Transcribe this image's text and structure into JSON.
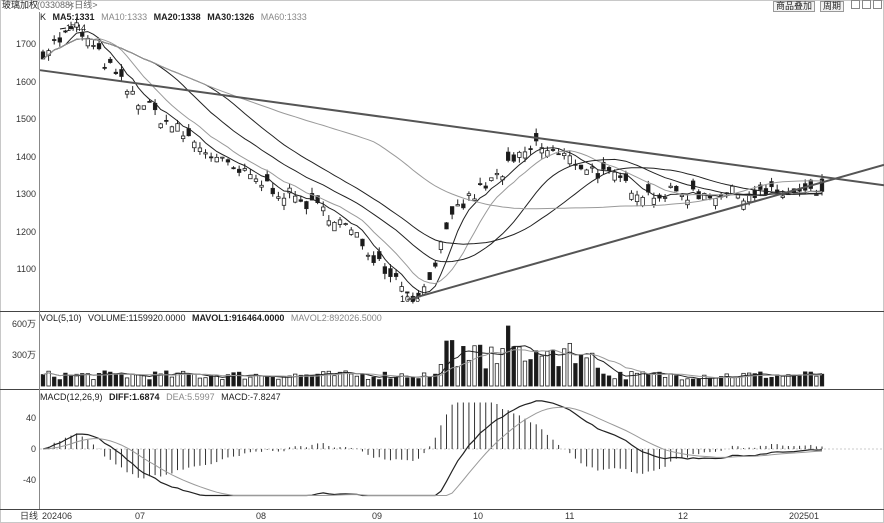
{
  "header": {
    "instrument": "玻璃加权",
    "code": "(033088)",
    "period": "<日线>",
    "overlay_label": "商品叠加",
    "cycle_label": "周期"
  },
  "price_panel": {
    "label": "K",
    "legend": [
      {
        "text": "MA5:1331",
        "style": "bold"
      },
      {
        "text": "MA10:1333",
        "style": "light"
      },
      {
        "text": "MA20:1338",
        "style": "bold"
      },
      {
        "text": "MA30:1326",
        "style": "bold"
      },
      {
        "text": "MA60:1333",
        "style": "light"
      }
    ],
    "yticks": [
      "1700",
      "1600",
      "1500",
      "1400",
      "1300",
      "1200",
      "1100"
    ],
    "high_annotation": "1744",
    "low_annotation": "1016"
  },
  "volume_panel": {
    "legend": [
      {
        "text": "VOL(5,10)",
        "style": "normal"
      },
      {
        "text": "VOLUME:1159920.0000",
        "style": "normal"
      },
      {
        "text": "MAVOL1:916464.0000",
        "style": "bold"
      },
      {
        "text": "MAVOL2:892026.5000",
        "style": "light"
      }
    ],
    "yticks": [
      "600万",
      "300万"
    ]
  },
  "macd_panel": {
    "legend": [
      {
        "text": "MACD(12,26,9)",
        "style": "normal"
      },
      {
        "text": "DIFF:1.6874",
        "style": "bold"
      },
      {
        "text": "DEA:5.5997",
        "style": "light"
      },
      {
        "text": "MACD:-7.8247",
        "style": "normal"
      }
    ],
    "yticks": [
      "40",
      "0",
      "-40"
    ]
  },
  "xaxis": {
    "label": "日线",
    "ticks": [
      "202406",
      "07",
      "08",
      "09",
      "10",
      "11",
      "12",
      "202501"
    ]
  },
  "colors": {
    "up": "#ffffff",
    "down": "#1a1a1a",
    "line": "#222222",
    "light": "#9a9a9a",
    "trend": "#555555"
  },
  "chart_data": {
    "type": "candlestick",
    "x_ticks": [
      "202406",
      "07",
      "08",
      "09",
      "10",
      "11",
      "12",
      "202501"
    ],
    "price_yticks": [
      1700,
      1600,
      1500,
      1400,
      1300,
      1200,
      1100
    ],
    "price_ylim": [
      1000,
      1780
    ],
    "price_anchors": [
      {
        "x": "202406",
        "close": 1680
      },
      {
        "x": "202406",
        "close": 1744
      },
      {
        "x": "07",
        "close": 1560
      },
      {
        "x": "08",
        "close": 1370
      },
      {
        "x": "09",
        "close": 1240
      },
      {
        "x": "09",
        "close": 1016
      },
      {
        "x": "10",
        "close": 1260
      },
      {
        "x": "11",
        "close": 1430
      },
      {
        "x": "12",
        "close": 1300
      },
      {
        "x": "202501",
        "close": 1300
      }
    ],
    "high": 1744,
    "low": 1016,
    "ma": {
      "MA5": 1331,
      "MA10": 1333,
      "MA20": 1338,
      "MA30": 1326,
      "MA60": 1333
    },
    "volume": {
      "VOLUME": 1159920.0,
      "MAVOL1": 916464.0,
      "MAVOL2": 892026.5,
      "yticks": [
        "600万",
        "300万"
      ],
      "ylim": [
        0,
        8000000
      ]
    },
    "macd": {
      "DIFF": 1.6874,
      "DEA": 5.5997,
      "MACD": -7.8247,
      "yticks": [
        40,
        0,
        -40
      ],
      "ylim": [
        -60,
        62
      ]
    },
    "trendlines": [
      {
        "from": {
          "x": "202406",
          "price": 1630
        },
        "to": {
          "x": "202501",
          "price": 1345
        }
      },
      {
        "from": {
          "x": "09",
          "price": 1016
        },
        "to": {
          "x": "202501",
          "price": 1330
        }
      }
    ]
  }
}
